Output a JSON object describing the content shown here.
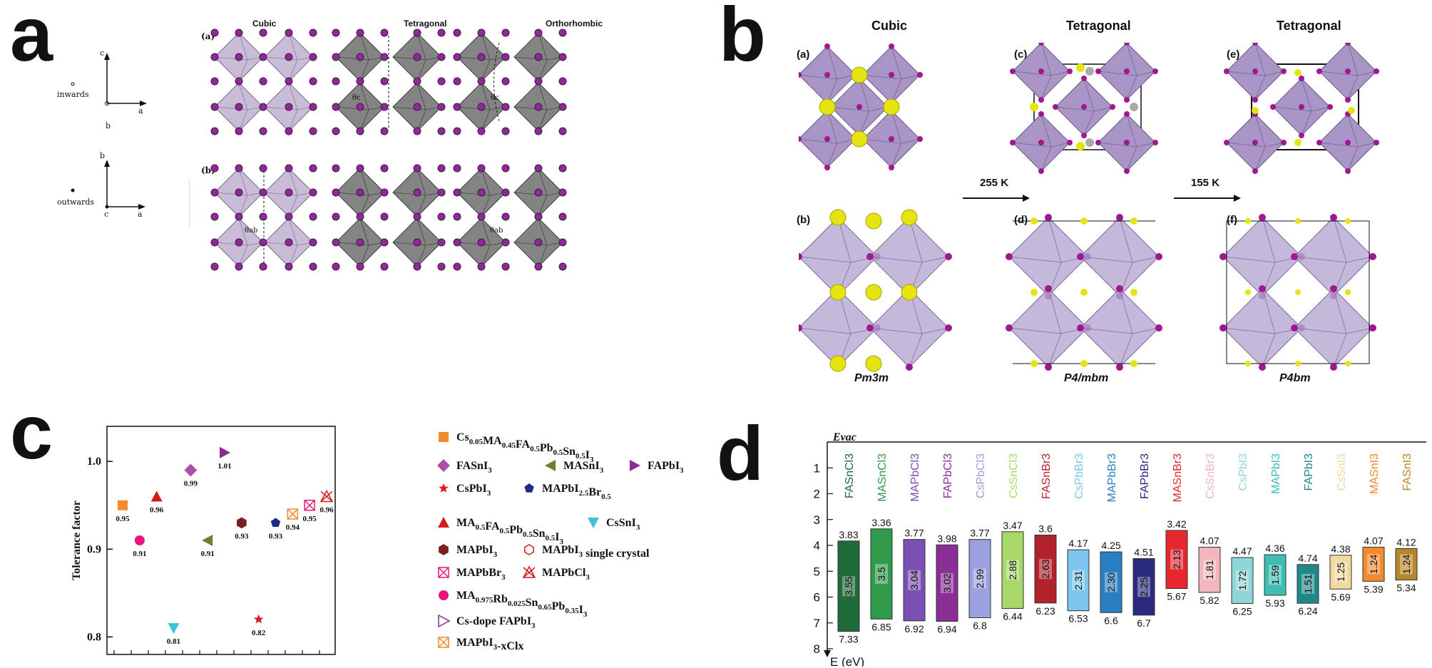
{
  "panels": {
    "a": {
      "letter": "a",
      "columns": [
        "Cubic",
        "Tetragonal",
        "Orthorhombic"
      ],
      "row_labels": [
        "(a)",
        "(b)"
      ],
      "axis_top": {
        "up": "c",
        "right": "a",
        "depth": "b",
        "note": "inwards"
      },
      "axis_bottom": {
        "up": "b",
        "right": "a",
        "depth": "c",
        "note": "outwards"
      },
      "angles": [
        "θc",
        "θc",
        "θab",
        "θab"
      ]
    },
    "b": {
      "letter": "b",
      "columns": [
        "Cubic",
        "Tetragonal",
        "Tetragonal"
      ],
      "sublabels": [
        "(a)",
        "(c)",
        "(e)",
        "(b)",
        "(d)",
        "(f)"
      ],
      "transitions": [
        "255 K",
        "155 K"
      ],
      "space_groups": [
        "Pm3m",
        "P4/mbm",
        "P4bm"
      ]
    },
    "c": {
      "letter": "c"
    },
    "d": {
      "letter": "d"
    }
  },
  "chart_data": [
    {
      "type": "scatter",
      "panel": "c",
      "ylabel": "Tolerance factor",
      "ylim": [
        0.78,
        1.04
      ],
      "yticks": [
        "0.8",
        "0.9",
        "1.0"
      ],
      "points": [
        {
          "label": "Cs0.05MA0.45FA0.5Pb0.5Sn0.5I3",
          "y": 0.95,
          "value_label": "0.95",
          "marker": "square",
          "color": "#f28a2e"
        },
        {
          "label": "MA0.975Rb0.025Sn0.65Pb0.35I3",
          "y": 0.91,
          "value_label": "0.91",
          "marker": "circle",
          "color": "#e8177d"
        },
        {
          "label": "MA0.5FA0.5Pb0.5Sn0.5I3",
          "y": 0.96,
          "value_label": "0.96",
          "marker": "triangle",
          "color": "#d7191c"
        },
        {
          "label": "CsSnI3",
          "y": 0.81,
          "value_label": "0.81",
          "marker": "triangle-down",
          "color": "#3cc3d6"
        },
        {
          "label": "FASnI3",
          "y": 0.99,
          "value_label": "0.99",
          "marker": "diamond",
          "color": "#b04fa8"
        },
        {
          "label": "MASnI3",
          "y": 0.91,
          "value_label": "0.91",
          "marker": "triangle-left",
          "color": "#7a7a2e"
        },
        {
          "label": "FAPbI3",
          "y": 1.01,
          "value_label": "1.01",
          "marker": "triangle-right",
          "color": "#8b2b93"
        },
        {
          "label": "MAPbI3",
          "y": 0.93,
          "value_label": "0.93",
          "marker": "hexagon",
          "color": "#7a1f1f"
        },
        {
          "label": "CsPbI3",
          "y": 0.82,
          "value_label": "0.82",
          "marker": "star",
          "color": "#e31a1c"
        },
        {
          "label": "MAPbI2.5Br0.5",
          "y": 0.93,
          "value_label": "0.93",
          "marker": "pentagon",
          "color": "#1f2a8a"
        },
        {
          "label": "MAPbI3-xClx",
          "y": 0.94,
          "value_label": "0.94",
          "marker": "square-x",
          "color": "#f28a2e"
        },
        {
          "label": "MAPbBr3",
          "y": 0.95,
          "value_label": "0.95",
          "marker": "square-x",
          "color": "#e8177d"
        },
        {
          "label": "MAPbCl3",
          "y": 0.96,
          "value_label": "0.96",
          "marker": "cross-triangle",
          "color": "#d7191c"
        }
      ],
      "legend": [
        {
          "marker": "square",
          "color": "#f28a2e",
          "text": "Cs0.05MA0.45FA0.5Pb0.5Sn0.5I3"
        },
        {
          "marker": "diamond",
          "color": "#b04fa8",
          "text": "FASnI3"
        },
        {
          "marker": "triangle-left",
          "color": "#7a7a2e",
          "text": "MASnI3"
        },
        {
          "marker": "triangle-right",
          "color": "#8b2b93",
          "text": "FAPbI3"
        },
        {
          "marker": "star",
          "color": "#e31a1c",
          "text": "CsPbI3"
        },
        {
          "marker": "pentagon",
          "color": "#1f2a8a",
          "text": "MAPbI2.5Br0.5"
        },
        {
          "marker": "triangle",
          "color": "#d7191c",
          "text": "MA0.5FA0.5Pb0.5Sn0.5I3"
        },
        {
          "marker": "triangle-down",
          "color": "#3cc3d6",
          "text": "CsSnI3"
        },
        {
          "marker": "hexagon",
          "color": "#7a1f1f",
          "text": "MAPbI3"
        },
        {
          "marker": "hexagon-open",
          "color": "#d7191c",
          "text": "MAPbI3 single crystal"
        },
        {
          "marker": "square-x",
          "color": "#e8177d",
          "text": "MAPbBr3"
        },
        {
          "marker": "cross-triangle",
          "color": "#d7191c",
          "text": "MAPbCl3"
        },
        {
          "marker": "circle",
          "color": "#e8177d",
          "text": "MA0.975Rb0.025Sn0.65Pb0.35I3"
        },
        {
          "marker": "triangle-right-open",
          "color": "#8b2b93",
          "text": "Cs-dope FAPbI3"
        },
        {
          "marker": "square-x",
          "color": "#f28a2e",
          "text": "MAPbI3-xClx"
        }
      ]
    },
    {
      "type": "bar",
      "panel": "d",
      "title": "Evac",
      "ylabel": "E (eV)",
      "ylim": [
        0,
        8
      ],
      "yticks": [
        "1",
        "2",
        "3",
        "4",
        "5",
        "6",
        "7",
        "8"
      ],
      "materials": [
        {
          "name": "FASnCl3",
          "cbm": 3.83,
          "vbm": 7.33,
          "cbm_label": "3.83",
          "vbm_label": "7.33",
          "gap": "3.55",
          "color": "#1f6b3a"
        },
        {
          "name": "MASnCl3",
          "cbm": 3.36,
          "vbm": 6.85,
          "cbm_label": "3.36",
          "vbm_label": "6.85",
          "gap": "3.5",
          "color": "#2e9a4a"
        },
        {
          "name": "MAPbCl3",
          "cbm": 3.77,
          "vbm": 6.92,
          "cbm_label": "3.77",
          "vbm_label": "6.92",
          "gap": "3.04",
          "color": "#7b4fb3"
        },
        {
          "name": "FAPbCl3",
          "cbm": 3.98,
          "vbm": 6.94,
          "cbm_label": "3.98",
          "vbm_label": "6.94",
          "gap": "3.02",
          "color": "#8a2f95"
        },
        {
          "name": "CsPbCl3",
          "cbm": 3.77,
          "vbm": 6.8,
          "cbm_label": "3.77",
          "vbm_label": "6.8",
          "gap": "2.99",
          "color": "#9aa0e0"
        },
        {
          "name": "CsSnCl3",
          "cbm": 3.47,
          "vbm": 6.44,
          "cbm_label": "3.47",
          "vbm_label": "6.44",
          "gap": "2.88",
          "color": "#a8d86a"
        },
        {
          "name": "FASnBr3",
          "cbm": 3.6,
          "vbm": 6.23,
          "cbm_label": "3.6",
          "vbm_label": "6.23",
          "gap": "2.63",
          "color": "#b3222a"
        },
        {
          "name": "CsPbBr3",
          "cbm": 4.17,
          "vbm": 6.53,
          "cbm_label": "4.17",
          "vbm_label": "6.53",
          "gap": "2.31",
          "color": "#7cc6ee"
        },
        {
          "name": "MAPbBr3",
          "cbm": 4.25,
          "vbm": 6.6,
          "cbm_label": "4.25",
          "vbm_label": "6.6",
          "gap": "2.30",
          "color": "#2a7fc2"
        },
        {
          "name": "FAPbBr3",
          "cbm": 4.51,
          "vbm": 6.7,
          "cbm_label": "4.51",
          "vbm_label": "6.7",
          "gap": "2.25",
          "color": "#2a2a7e"
        },
        {
          "name": "MASnBr3",
          "cbm": 3.42,
          "vbm": 5.67,
          "cbm_label": "3.42",
          "vbm_label": "5.67",
          "gap": "2.13",
          "color": "#e8262e"
        },
        {
          "name": "CsSnBr3",
          "cbm": 4.07,
          "vbm": 5.82,
          "cbm_label": "4.07",
          "vbm_label": "5.82",
          "gap": "1.81",
          "color": "#f2b6bd"
        },
        {
          "name": "CsPbI3",
          "cbm": 4.47,
          "vbm": 6.25,
          "cbm_label": "4.47",
          "vbm_label": "6.25",
          "gap": "1.72",
          "color": "#8fd6d8"
        },
        {
          "name": "MAPbI3",
          "cbm": 4.36,
          "vbm": 5.93,
          "cbm_label": "4.36",
          "vbm_label": "5.93",
          "gap": "1.59",
          "color": "#3cbfb1"
        },
        {
          "name": "FAPbI3",
          "cbm": 4.74,
          "vbm": 6.24,
          "cbm_label": "4.74",
          "vbm_label": "6.24",
          "gap": "1.51",
          "color": "#1f8a85"
        },
        {
          "name": "CsSnI3",
          "cbm": 4.38,
          "vbm": 5.69,
          "cbm_label": "4.38",
          "vbm_label": "5.69",
          "gap": "1.25",
          "color": "#f2d9a0"
        },
        {
          "name": "MASnI3",
          "cbm": 4.07,
          "vbm": 5.39,
          "cbm_label": "4.07",
          "vbm_label": "5.39",
          "gap": "1.24",
          "color": "#f28a2e"
        },
        {
          "name": "FASnI3",
          "cbm": 4.12,
          "vbm": 5.34,
          "cbm_label": "4.12",
          "vbm_label": "5.34",
          "gap": "1.24",
          "color": "#b8862a"
        }
      ]
    }
  ]
}
